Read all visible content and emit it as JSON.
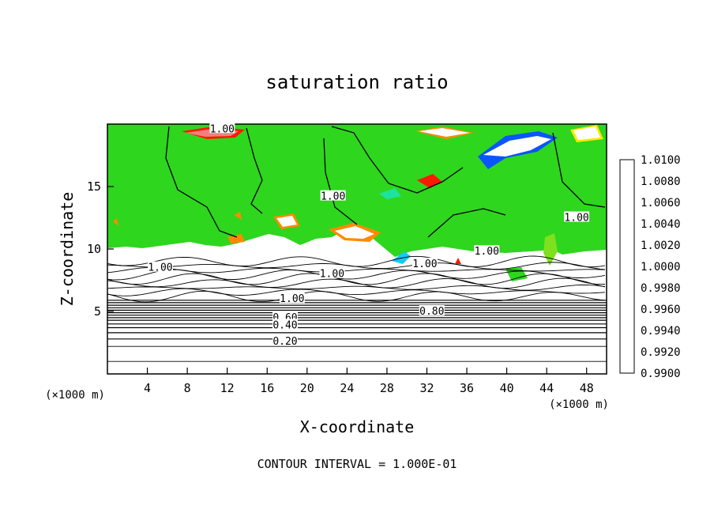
{
  "chart_data": {
    "type": "heatmap",
    "title": "saturation ratio",
    "xlabel": "X-coordinate",
    "ylabel": "Z-coordinate",
    "x_unit": "(×1000 m)",
    "y_unit": "(×1000 m)",
    "xlim": [
      0,
      50
    ],
    "ylim": [
      0,
      20
    ],
    "x_ticks": [
      4,
      8,
      12,
      16,
      20,
      24,
      28,
      32,
      36,
      40,
      44,
      48
    ],
    "y_ticks": [
      5,
      10,
      15
    ],
    "footer": "CONTOUR INTERVAL = 1.000E-01",
    "colorbar": {
      "position": "right",
      "levels": [
        "0.9900",
        "0.9920",
        "0.9940",
        "0.9960",
        "0.9980",
        "1.0000",
        "1.0020",
        "1.0040",
        "1.0060",
        "1.0080",
        "1.0100"
      ],
      "colors": [
        "#6a0dad",
        "#2a00c8",
        "#0a55ff",
        "#18c8f0",
        "#1ee3a0",
        "#2ed61e",
        "#7ee01e",
        "#ffe800",
        "#ff8a00",
        "#ff1a00",
        "#f08080"
      ]
    },
    "contour_labels": [
      {
        "text": "1.00",
        "x": 11.5,
        "y": 19.6
      },
      {
        "text": "1.00",
        "x": 22.6,
        "y": 14.2
      },
      {
        "text": "1.00",
        "x": 47.0,
        "y": 12.5
      },
      {
        "text": "1.00",
        "x": 5.3,
        "y": 8.5
      },
      {
        "text": "1.00",
        "x": 22.5,
        "y": 8.0
      },
      {
        "text": "1.00",
        "x": 31.8,
        "y": 8.8
      },
      {
        "text": "1.00",
        "x": 38.0,
        "y": 9.8
      },
      {
        "text": "1.00",
        "x": 18.5,
        "y": 6.0
      },
      {
        "text": "0.80",
        "x": 32.5,
        "y": 5.0
      },
      {
        "text": "0.60",
        "x": 17.8,
        "y": 4.5
      },
      {
        "text": "0.40",
        "x": 17.8,
        "y": 3.9
      },
      {
        "text": "0.20",
        "x": 17.8,
        "y": 2.6
      }
    ]
  }
}
